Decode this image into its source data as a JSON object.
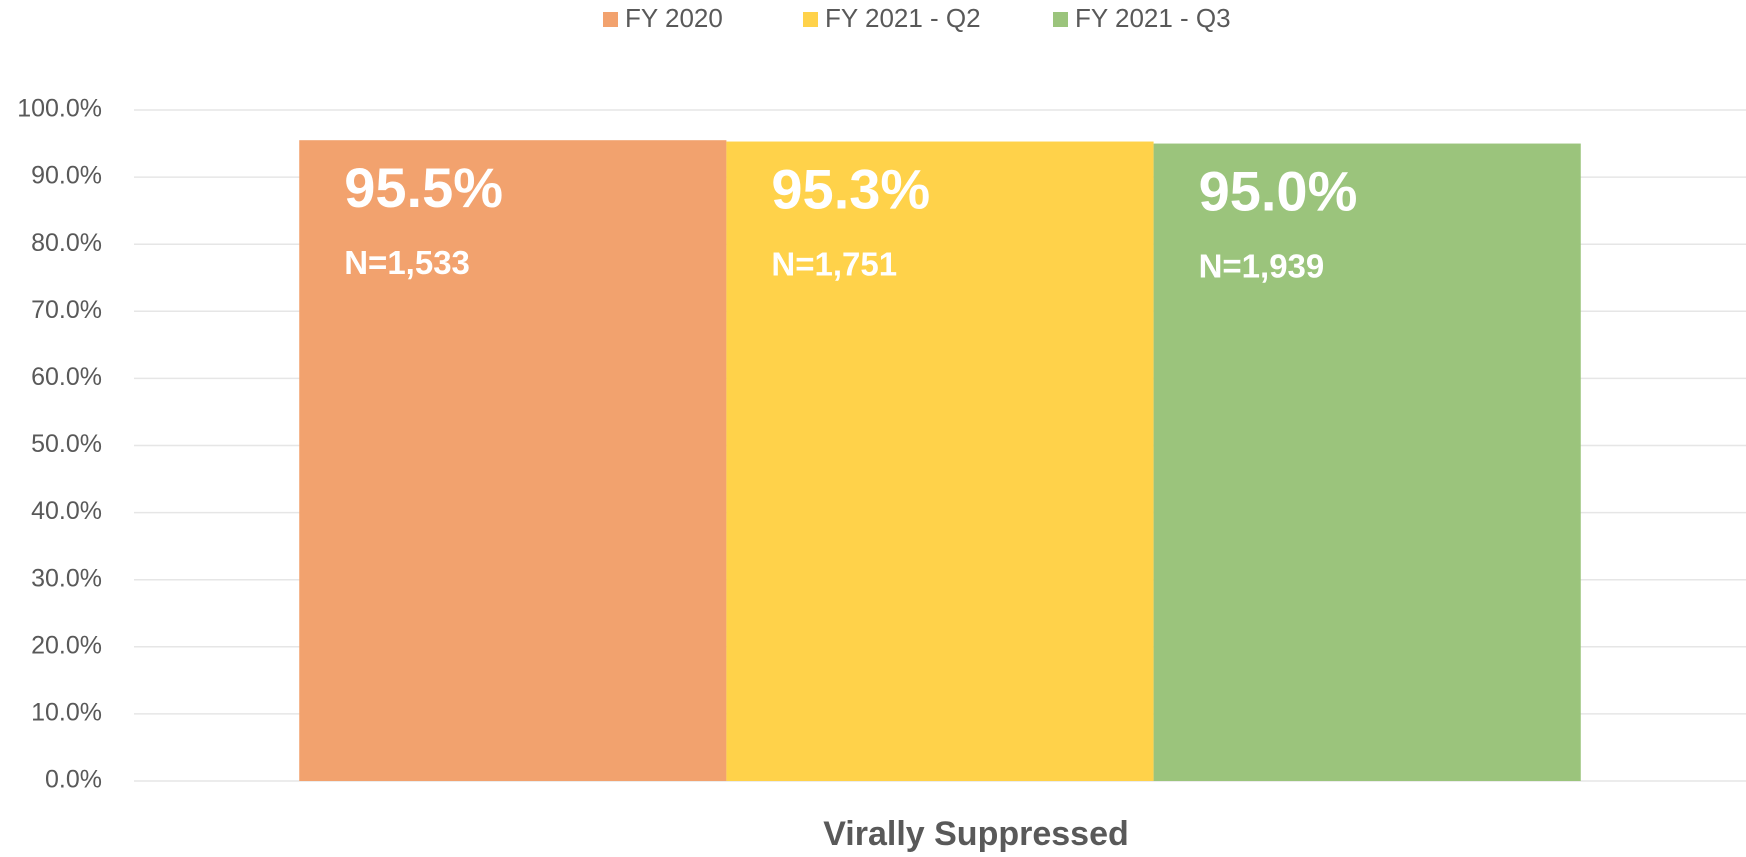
{
  "chart_data": {
    "type": "bar",
    "title": "Virally Suppressed",
    "categories": [
      "Virally Suppressed"
    ],
    "series": [
      {
        "name": "FY 2020",
        "color": "#f2a26e",
        "values": [
          95.5
        ],
        "value_labels": [
          "95.5%"
        ],
        "annotations": [
          "N=1,533"
        ]
      },
      {
        "name": "FY 2021 - Q2",
        "color": "#ffd24a",
        "values": [
          95.3
        ],
        "value_labels": [
          "95.3%"
        ],
        "annotations": [
          "N=1,751"
        ]
      },
      {
        "name": "FY 2021 - Q3",
        "color": "#9bc47c",
        "values": [
          95.0
        ],
        "value_labels": [
          "95.0%"
        ],
        "annotations": [
          "N=1,939"
        ]
      }
    ],
    "ylim": [
      0,
      100
    ],
    "yticks": [
      {
        "value": 0,
        "label": "0.0%"
      },
      {
        "value": 10,
        "label": "10.0%"
      },
      {
        "value": 20,
        "label": "20.0%"
      },
      {
        "value": 30,
        "label": "30.0%"
      },
      {
        "value": 40,
        "label": "40.0%"
      },
      {
        "value": 50,
        "label": "50.0%"
      },
      {
        "value": 60,
        "label": "60.0%"
      },
      {
        "value": 70,
        "label": "70.0%"
      },
      {
        "value": 80,
        "label": "80.0%"
      },
      {
        "value": 90,
        "label": "90.0%"
      },
      {
        "value": 100,
        "label": "100.0%"
      }
    ],
    "grid": true,
    "legend": "top"
  }
}
